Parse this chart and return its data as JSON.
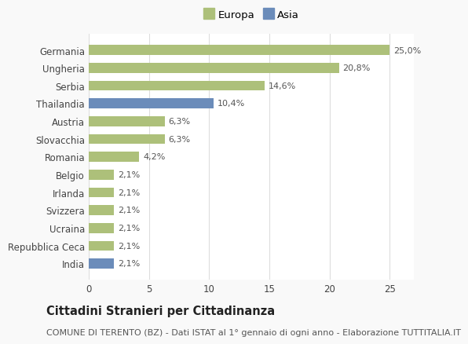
{
  "categories": [
    "India",
    "Repubblica Ceca",
    "Ucraina",
    "Svizzera",
    "Irlanda",
    "Belgio",
    "Romania",
    "Slovacchia",
    "Austria",
    "Thailandia",
    "Serbia",
    "Ungheria",
    "Germania"
  ],
  "values": [
    2.1,
    2.1,
    2.1,
    2.1,
    2.1,
    2.1,
    4.2,
    6.3,
    6.3,
    10.4,
    14.6,
    20.8,
    25.0
  ],
  "colors": [
    "#6b8cba",
    "#adc07a",
    "#adc07a",
    "#adc07a",
    "#adc07a",
    "#adc07a",
    "#adc07a",
    "#adc07a",
    "#adc07a",
    "#6b8cba",
    "#adc07a",
    "#adc07a",
    "#adc07a"
  ],
  "labels": [
    "2,1%",
    "2,1%",
    "2,1%",
    "2,1%",
    "2,1%",
    "2,1%",
    "4,2%",
    "6,3%",
    "6,3%",
    "10,4%",
    "14,6%",
    "20,8%",
    "25,0%"
  ],
  "xlim": [
    0,
    27
  ],
  "xticks": [
    0,
    5,
    10,
    15,
    20,
    25
  ],
  "europa_color": "#adc07a",
  "asia_color": "#6b8cba",
  "title": "Cittadini Stranieri per Cittadinanza",
  "subtitle": "COMUNE DI TERENTO (BZ) - Dati ISTAT al 1° gennaio di ogni anno - Elaborazione TUTTITALIA.IT",
  "background_color": "#f9f9f9",
  "plot_bg_color": "#ffffff",
  "grid_color": "#dddddd",
  "title_fontsize": 10.5,
  "subtitle_fontsize": 8,
  "label_fontsize": 8,
  "tick_fontsize": 8.5,
  "legend_fontsize": 9.5
}
